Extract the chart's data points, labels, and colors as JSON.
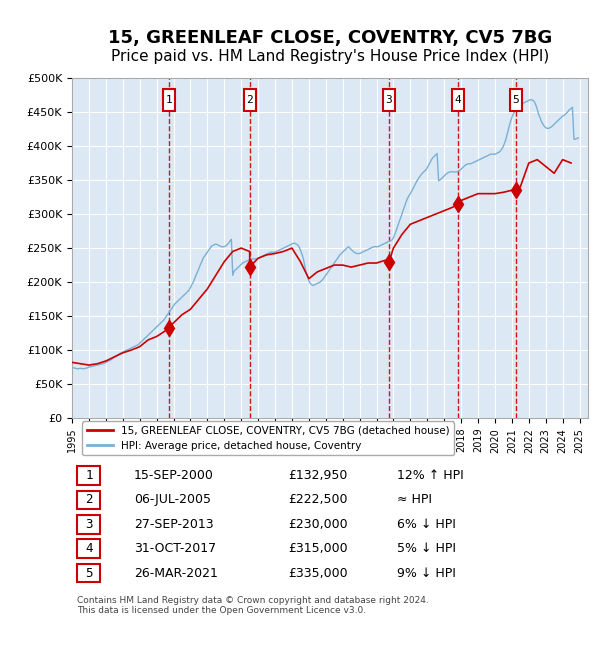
{
  "title": "15, GREENLEAF CLOSE, COVENTRY, CV5 7BG",
  "subtitle": "Price paid vs. HM Land Registry's House Price Index (HPI)",
  "title_fontsize": 13,
  "subtitle_fontsize": 11,
  "background_color": "#ffffff",
  "plot_bg_color": "#dce9f5",
  "grid_color": "#ffffff",
  "ylim": [
    0,
    500000
  ],
  "yticks": [
    0,
    50000,
    100000,
    150000,
    200000,
    250000,
    300000,
    350000,
    400000,
    450000,
    500000
  ],
  "ytick_labels": [
    "£0",
    "£50K",
    "£100K",
    "£150K",
    "£200K",
    "£250K",
    "£300K",
    "£350K",
    "£400K",
    "£450K",
    "£500K"
  ],
  "xlim_start": 1995.0,
  "xlim_end": 2025.5,
  "xtick_labels": [
    "1995",
    "1996",
    "1997",
    "1998",
    "1999",
    "2000",
    "2001",
    "2002",
    "2003",
    "2004",
    "2005",
    "2006",
    "2007",
    "2008",
    "2009",
    "2010",
    "2011",
    "2012",
    "2013",
    "2014",
    "2015",
    "2016",
    "2017",
    "2018",
    "2019",
    "2020",
    "2021",
    "2022",
    "2023",
    "2024",
    "2025"
  ],
  "red_line_color": "#cc0000",
  "blue_line_color": "#7bafd4",
  "marker_color": "#cc0000",
  "dashed_line_color": "#cc0000",
  "legend_box_color": "#cc3333",
  "sale_points": [
    {
      "id": 1,
      "date": "15-SEP-2000",
      "year": 2000.71,
      "price": 132950,
      "hpi_note": "12% ↑ HPI"
    },
    {
      "id": 2,
      "date": "06-JUL-2005",
      "year": 2005.51,
      "price": 222500,
      "hpi_note": "≈ HPI"
    },
    {
      "id": 3,
      "date": "27-SEP-2013",
      "year": 2013.74,
      "price": 230000,
      "hpi_note": "6% ↓ HPI"
    },
    {
      "id": 4,
      "date": "31-OCT-2017",
      "year": 2017.83,
      "price": 315000,
      "hpi_note": "5% ↓ HPI"
    },
    {
      "id": 5,
      "date": "26-MAR-2021",
      "year": 2021.23,
      "price": 335000,
      "hpi_note": "9% ↓ HPI"
    }
  ],
  "hpi_line_data_x": [
    1995.0,
    1995.08,
    1995.17,
    1995.25,
    1995.33,
    1995.42,
    1995.5,
    1995.58,
    1995.67,
    1995.75,
    1995.83,
    1995.92,
    1996.0,
    1996.08,
    1996.17,
    1996.25,
    1996.33,
    1996.42,
    1996.5,
    1996.58,
    1996.67,
    1996.75,
    1996.83,
    1996.92,
    1997.0,
    1997.08,
    1997.17,
    1997.25,
    1997.33,
    1997.42,
    1997.5,
    1997.58,
    1997.67,
    1997.75,
    1997.83,
    1997.92,
    1998.0,
    1998.08,
    1998.17,
    1998.25,
    1998.33,
    1998.42,
    1998.5,
    1998.58,
    1998.67,
    1998.75,
    1998.83,
    1998.92,
    1999.0,
    1999.08,
    1999.17,
    1999.25,
    1999.33,
    1999.42,
    1999.5,
    1999.58,
    1999.67,
    1999.75,
    1999.83,
    1999.92,
    2000.0,
    2000.08,
    2000.17,
    2000.25,
    2000.33,
    2000.42,
    2000.5,
    2000.58,
    2000.67,
    2000.75,
    2000.83,
    2000.92,
    2001.0,
    2001.08,
    2001.17,
    2001.25,
    2001.33,
    2001.42,
    2001.5,
    2001.58,
    2001.67,
    2001.75,
    2001.83,
    2001.92,
    2002.0,
    2002.08,
    2002.17,
    2002.25,
    2002.33,
    2002.42,
    2002.5,
    2002.58,
    2002.67,
    2002.75,
    2002.83,
    2002.92,
    2003.0,
    2003.08,
    2003.17,
    2003.25,
    2003.33,
    2003.42,
    2003.5,
    2003.58,
    2003.67,
    2003.75,
    2003.83,
    2003.92,
    2004.0,
    2004.08,
    2004.17,
    2004.25,
    2004.33,
    2004.42,
    2004.5,
    2004.58,
    2004.67,
    2004.75,
    2004.83,
    2004.92,
    2005.0,
    2005.08,
    2005.17,
    2005.25,
    2005.33,
    2005.42,
    2005.5,
    2005.58,
    2005.67,
    2005.75,
    2005.83,
    2005.92,
    2006.0,
    2006.08,
    2006.17,
    2006.25,
    2006.33,
    2006.42,
    2006.5,
    2006.58,
    2006.67,
    2006.75,
    2006.83,
    2006.92,
    2007.0,
    2007.08,
    2007.17,
    2007.25,
    2007.33,
    2007.42,
    2007.5,
    2007.58,
    2007.67,
    2007.75,
    2007.83,
    2007.92,
    2008.0,
    2008.08,
    2008.17,
    2008.25,
    2008.33,
    2008.42,
    2008.5,
    2008.58,
    2008.67,
    2008.75,
    2008.83,
    2008.92,
    2009.0,
    2009.08,
    2009.17,
    2009.25,
    2009.33,
    2009.42,
    2009.5,
    2009.58,
    2009.67,
    2009.75,
    2009.83,
    2009.92,
    2010.0,
    2010.08,
    2010.17,
    2010.25,
    2010.33,
    2010.42,
    2010.5,
    2010.58,
    2010.67,
    2010.75,
    2010.83,
    2010.92,
    2011.0,
    2011.08,
    2011.17,
    2011.25,
    2011.33,
    2011.42,
    2011.5,
    2011.58,
    2011.67,
    2011.75,
    2011.83,
    2011.92,
    2012.0,
    2012.08,
    2012.17,
    2012.25,
    2012.33,
    2012.42,
    2012.5,
    2012.58,
    2012.67,
    2012.75,
    2012.83,
    2012.92,
    2013.0,
    2013.08,
    2013.17,
    2013.25,
    2013.33,
    2013.42,
    2013.5,
    2013.58,
    2013.67,
    2013.75,
    2013.83,
    2013.92,
    2014.0,
    2014.08,
    2014.17,
    2014.25,
    2014.33,
    2014.42,
    2014.5,
    2014.58,
    2014.67,
    2014.75,
    2014.83,
    2014.92,
    2015.0,
    2015.08,
    2015.17,
    2015.25,
    2015.33,
    2015.42,
    2015.5,
    2015.58,
    2015.67,
    2015.75,
    2015.83,
    2015.92,
    2016.0,
    2016.08,
    2016.17,
    2016.25,
    2016.33,
    2016.42,
    2016.5,
    2016.58,
    2016.67,
    2016.75,
    2016.83,
    2016.92,
    2017.0,
    2017.08,
    2017.17,
    2017.25,
    2017.33,
    2017.42,
    2017.5,
    2017.58,
    2017.67,
    2017.75,
    2017.83,
    2017.92,
    2018.0,
    2018.08,
    2018.17,
    2018.25,
    2018.33,
    2018.42,
    2018.5,
    2018.58,
    2018.67,
    2018.75,
    2018.83,
    2018.92,
    2019.0,
    2019.08,
    2019.17,
    2019.25,
    2019.33,
    2019.42,
    2019.5,
    2019.58,
    2019.67,
    2019.75,
    2019.83,
    2019.92,
    2020.0,
    2020.08,
    2020.17,
    2020.25,
    2020.33,
    2020.42,
    2020.5,
    2020.58,
    2020.67,
    2020.75,
    2020.83,
    2020.92,
    2021.0,
    2021.08,
    2021.17,
    2021.25,
    2021.33,
    2021.42,
    2021.5,
    2021.58,
    2021.67,
    2021.75,
    2021.83,
    2021.92,
    2022.0,
    2022.08,
    2022.17,
    2022.25,
    2022.33,
    2022.42,
    2022.5,
    2022.58,
    2022.67,
    2022.75,
    2022.83,
    2022.92,
    2023.0,
    2023.08,
    2023.17,
    2023.25,
    2023.33,
    2023.42,
    2023.5,
    2023.58,
    2023.67,
    2023.75,
    2023.83,
    2023.92,
    2024.0,
    2024.08,
    2024.17,
    2024.25,
    2024.33,
    2024.42,
    2024.5,
    2024.58,
    2024.67,
    2024.75,
    2024.83,
    2024.92
  ],
  "hpi_line_data_y": [
    75000,
    74000,
    73500,
    73000,
    72500,
    72800,
    73200,
    73000,
    72500,
    72800,
    73500,
    74000,
    75000,
    75500,
    76000,
    76500,
    77000,
    77500,
    78000,
    78500,
    79000,
    79500,
    80000,
    80500,
    82000,
    83000,
    84000,
    85000,
    86500,
    88000,
    89500,
    91000,
    92500,
    94000,
    95000,
    96000,
    97000,
    98000,
    99000,
    100000,
    101000,
    102000,
    103000,
    104000,
    105000,
    106000,
    107000,
    108000,
    110000,
    112000,
    114000,
    116000,
    118000,
    120000,
    122000,
    124000,
    126000,
    128000,
    130000,
    132000,
    134000,
    136000,
    138000,
    140000,
    142000,
    144000,
    147000,
    150000,
    153000,
    156000,
    159000,
    162000,
    165000,
    168000,
    170000,
    172000,
    174000,
    176000,
    178000,
    180000,
    182000,
    184000,
    186000,
    188000,
    192000,
    196000,
    200000,
    205000,
    210000,
    215000,
    220000,
    225000,
    230000,
    235000,
    238000,
    241000,
    244000,
    247000,
    250000,
    253000,
    254000,
    255000,
    256000,
    255000,
    254000,
    253000,
    252000,
    252000,
    252000,
    253000,
    255000,
    257000,
    260000,
    263000,
    210000,
    216000,
    218000,
    220000,
    222000,
    224000,
    226000,
    228000,
    229000,
    230000,
    231000,
    232000,
    233000,
    234000,
    234000,
    234000,
    234000,
    234000,
    235000,
    236000,
    237000,
    238000,
    239000,
    240000,
    241000,
    242000,
    243000,
    244000,
    244000,
    244000,
    244000,
    245000,
    246000,
    247000,
    248000,
    249000,
    250000,
    251000,
    252000,
    253000,
    254000,
    255000,
    256000,
    257000,
    257000,
    256000,
    255000,
    252000,
    247000,
    242000,
    235000,
    225000,
    215000,
    208000,
    202000,
    198000,
    196000,
    195000,
    196000,
    197000,
    198000,
    199000,
    200000,
    202000,
    204000,
    207000,
    210000,
    213000,
    216000,
    219000,
    222000,
    225000,
    228000,
    231000,
    234000,
    237000,
    240000,
    242000,
    244000,
    246000,
    248000,
    250000,
    252000,
    250000,
    248000,
    246000,
    244000,
    243000,
    242000,
    242000,
    242000,
    243000,
    244000,
    245000,
    246000,
    247000,
    248000,
    249000,
    250000,
    251000,
    252000,
    252000,
    252000,
    252000,
    253000,
    254000,
    255000,
    256000,
    257000,
    258000,
    259000,
    260000,
    261000,
    262000,
    265000,
    270000,
    276000,
    282000,
    288000,
    294000,
    300000,
    306000,
    312000,
    318000,
    323000,
    327000,
    330000,
    334000,
    338000,
    342000,
    346000,
    350000,
    353000,
    356000,
    359000,
    361000,
    363000,
    365000,
    368000,
    372000,
    376000,
    380000,
    383000,
    385000,
    387000,
    389000,
    349000,
    350000,
    352000,
    354000,
    356000,
    358000,
    360000,
    361000,
    362000,
    362000,
    362000,
    362000,
    362000,
    362000,
    363000,
    364000,
    366000,
    368000,
    370000,
    372000,
    373000,
    374000,
    374000,
    374000,
    375000,
    376000,
    377000,
    378000,
    379000,
    380000,
    381000,
    382000,
    383000,
    384000,
    385000,
    386000,
    387000,
    388000,
    388000,
    388000,
    388000,
    389000,
    390000,
    391000,
    393000,
    396000,
    400000,
    405000,
    412000,
    420000,
    428000,
    436000,
    442000,
    447000,
    451000,
    455000,
    458000,
    460000,
    461000,
    462000,
    463000,
    464000,
    465000,
    466000,
    467000,
    468000,
    468000,
    467000,
    465000,
    460000,
    454000,
    447000,
    441000,
    436000,
    432000,
    429000,
    427000,
    426000,
    426000,
    427000,
    428000,
    430000,
    432000,
    434000,
    436000,
    438000,
    440000,
    442000,
    444000,
    445000,
    447000,
    449000,
    451000,
    454000,
    455000,
    457000,
    410000,
    410000,
    411000,
    412000
  ],
  "red_line_data_x": [
    1995.0,
    1995.5,
    1996.0,
    1996.5,
    1997.0,
    1997.5,
    1998.0,
    1998.5,
    1999.0,
    1999.5,
    2000.0,
    2000.5,
    2000.71,
    2001.0,
    2001.5,
    2002.0,
    2002.5,
    2003.0,
    2003.5,
    2004.0,
    2004.5,
    2005.0,
    2005.5,
    2005.51,
    2006.0,
    2006.5,
    2007.0,
    2007.5,
    2008.0,
    2008.5,
    2009.0,
    2009.5,
    2010.0,
    2010.5,
    2011.0,
    2011.5,
    2012.0,
    2012.5,
    2013.0,
    2013.5,
    2013.74,
    2014.0,
    2014.5,
    2015.0,
    2015.5,
    2016.0,
    2016.5,
    2017.0,
    2017.5,
    2017.83,
    2018.0,
    2018.5,
    2019.0,
    2019.5,
    2020.0,
    2020.5,
    2021.0,
    2021.23,
    2021.5,
    2022.0,
    2022.5,
    2023.0,
    2023.5,
    2024.0,
    2024.5
  ],
  "red_line_data_y": [
    82000,
    80000,
    78000,
    80000,
    84000,
    90000,
    96000,
    100000,
    105000,
    115000,
    120000,
    128000,
    132950,
    140000,
    152000,
    160000,
    175000,
    190000,
    210000,
    230000,
    245000,
    250000,
    245000,
    222500,
    235000,
    240000,
    242000,
    245000,
    250000,
    230000,
    205000,
    215000,
    220000,
    225000,
    225000,
    222000,
    225000,
    228000,
    228000,
    232000,
    230000,
    250000,
    270000,
    285000,
    290000,
    295000,
    300000,
    305000,
    310000,
    315000,
    320000,
    325000,
    330000,
    330000,
    330000,
    332000,
    335000,
    335000,
    340000,
    375000,
    380000,
    370000,
    360000,
    380000,
    375000
  ],
  "legend_label_red": "15, GREENLEAF CLOSE, COVENTRY, CV5 7BG (detached house)",
  "legend_label_blue": "HPI: Average price, detached house, Coventry",
  "table_rows": [
    {
      "id": "1",
      "date": "15-SEP-2000",
      "price": "£132,950",
      "hpi_note": "12% ↑ HPI"
    },
    {
      "id": "2",
      "date": "06-JUL-2005",
      "price": "£222,500",
      "hpi_note": "≈ HPI"
    },
    {
      "id": "3",
      "date": "27-SEP-2013",
      "price": "£230,000",
      "hpi_note": "6% ↓ HPI"
    },
    {
      "id": "4",
      "date": "31-OCT-2017",
      "price": "£315,000",
      "hpi_note": "5% ↓ HPI"
    },
    {
      "id": "5",
      "date": "26-MAR-2021",
      "price": "£335,000",
      "hpi_note": "9% ↓ HPI"
    }
  ],
  "footnote": "Contains HM Land Registry data © Crown copyright and database right 2024.\nThis data is licensed under the Open Government Licence v3.0."
}
